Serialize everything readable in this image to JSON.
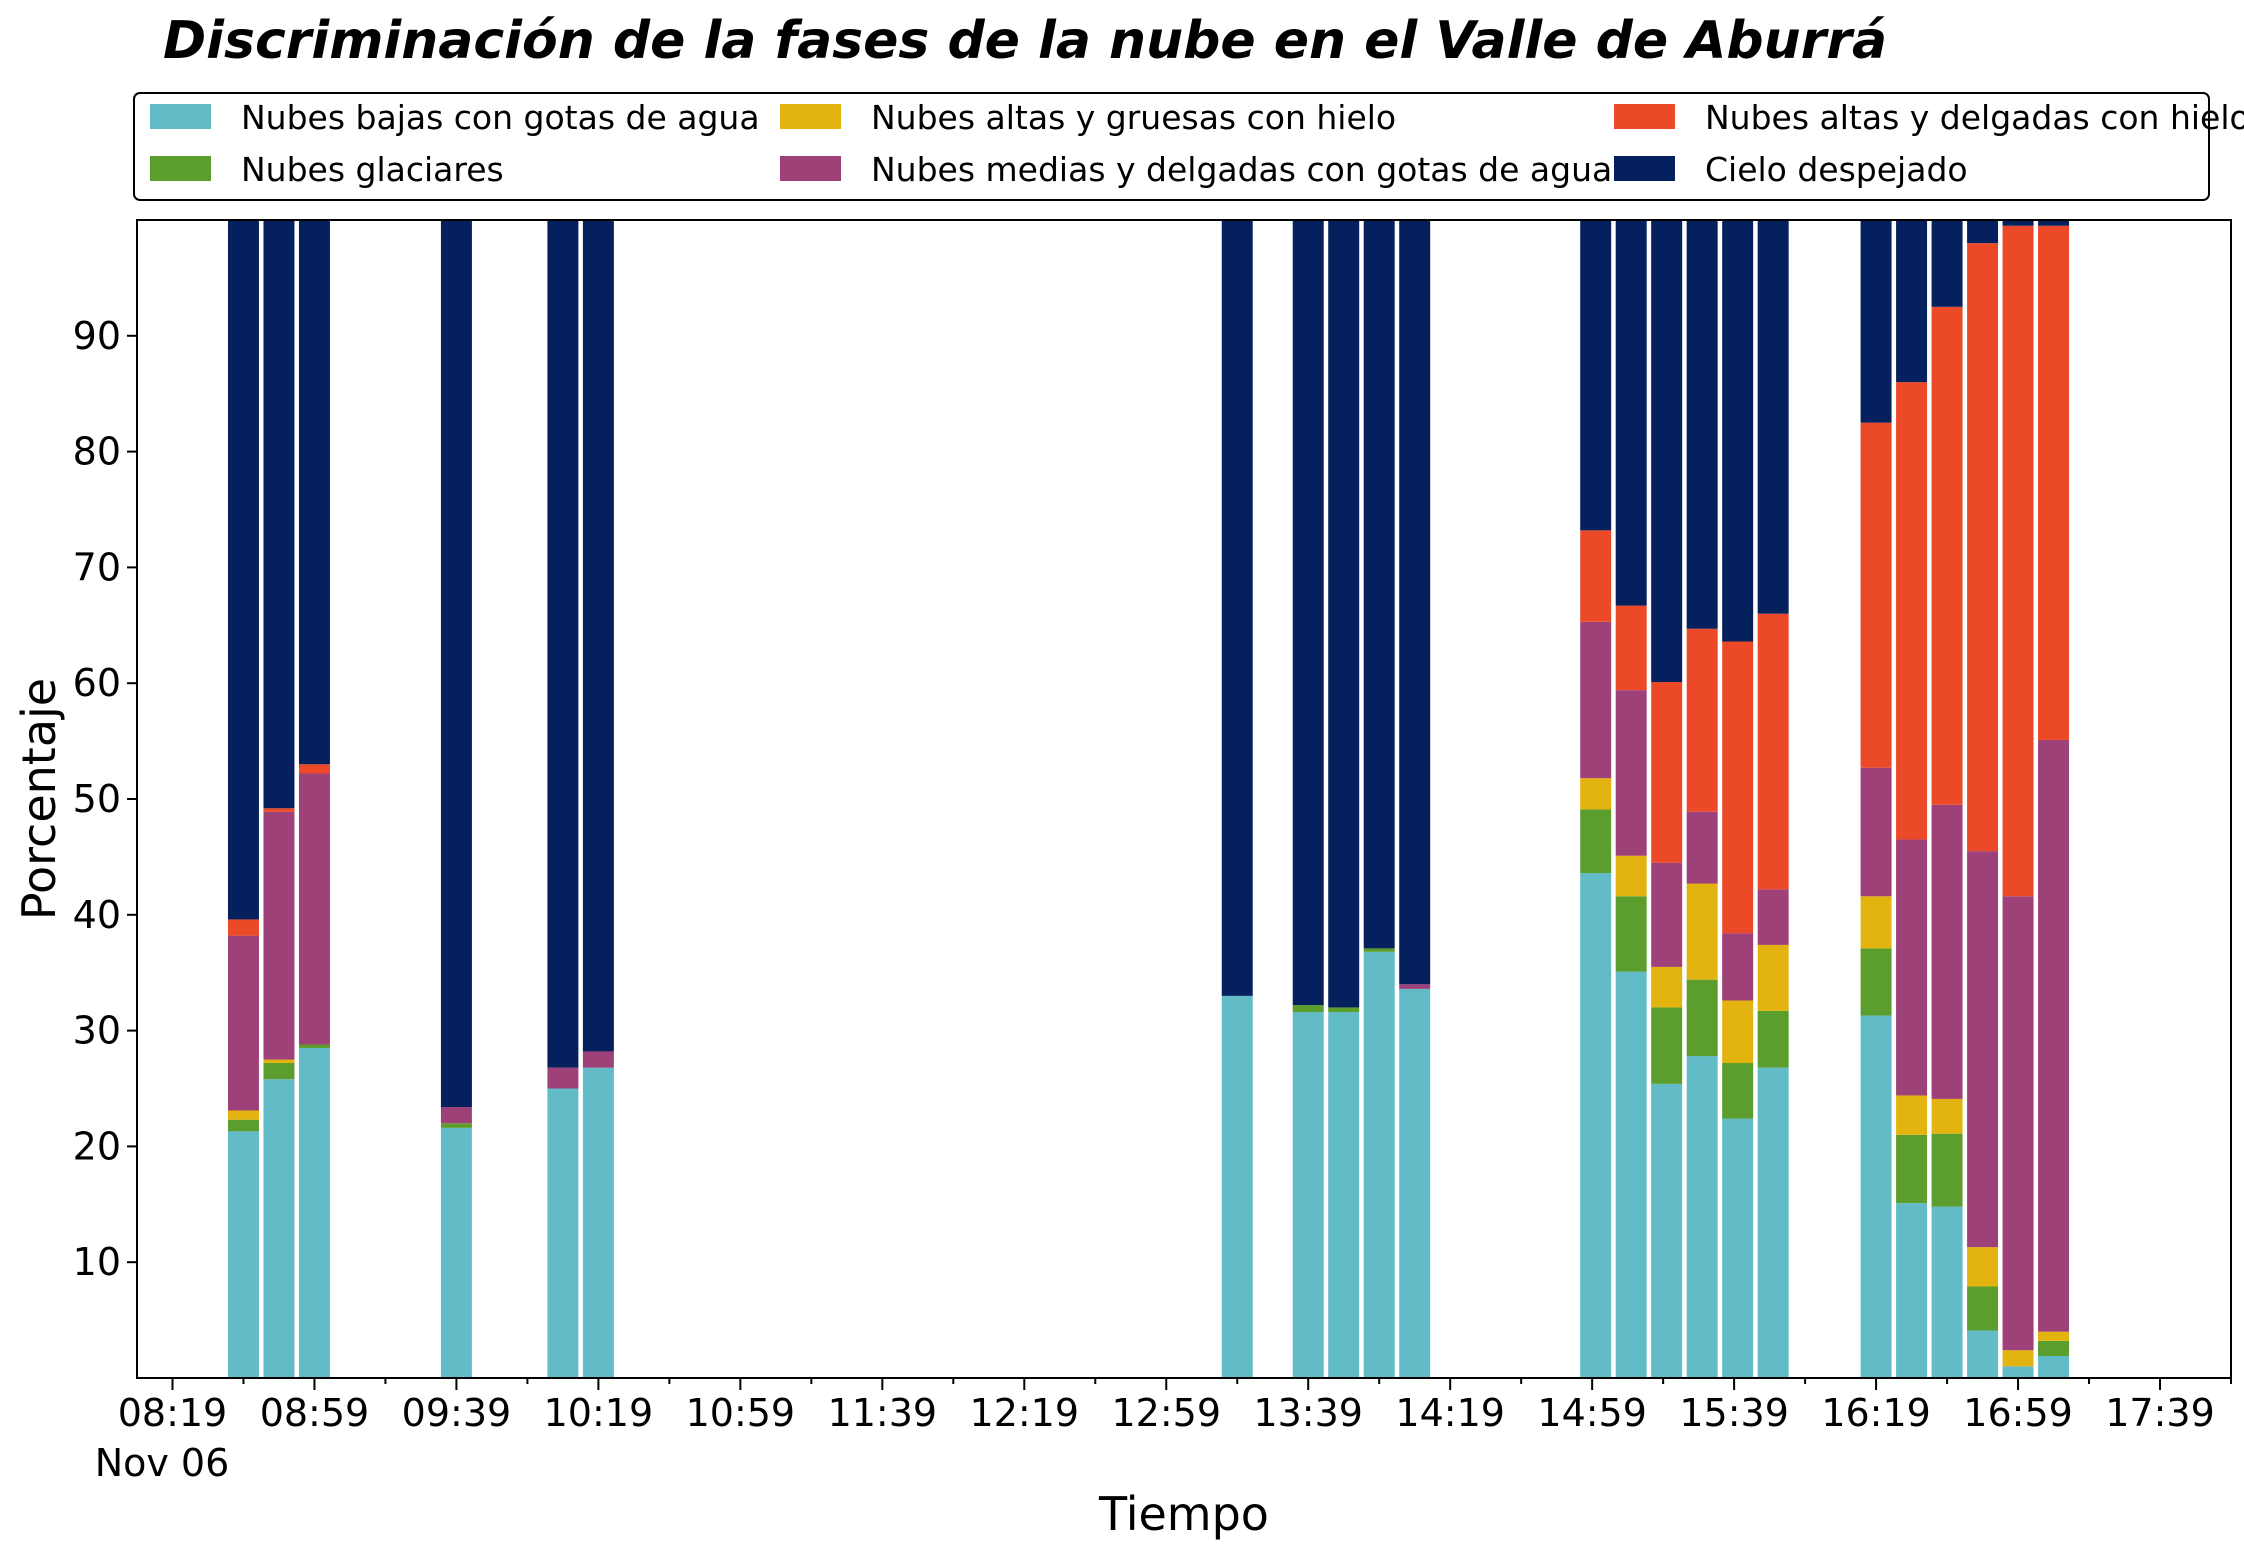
{
  "chart_data": {
    "type": "bar",
    "stacked": true,
    "title": "Discriminación de la fases de la nube en el Valle de Aburrá",
    "xlabel": "Tiempo",
    "ylabel": "Porcentaje",
    "ylim": [
      0,
      100
    ],
    "y_ticks": [
      10,
      20,
      30,
      40,
      50,
      60,
      70,
      80,
      90
    ],
    "x_ticks": [
      "08:19",
      "08:59",
      "09:39",
      "10:19",
      "10:59",
      "11:39",
      "12:19",
      "12:59",
      "13:39",
      "14:19",
      "14:59",
      "15:39",
      "16:19",
      "16:59",
      "17:39"
    ],
    "x_date_label": "Nov 06",
    "xlim": [
      "08:09",
      "17:59"
    ],
    "bar_width_minutes": 9,
    "legend_position": "top",
    "grid": false,
    "x": [
      "08:39",
      "08:49",
      "08:59",
      "09:39",
      "10:09",
      "10:19",
      "13:19",
      "13:39",
      "13:49",
      "13:59",
      "14:09",
      "15:00",
      "15:10",
      "15:20",
      "15:30",
      "15:40",
      "15:50",
      "16:19",
      "16:29",
      "16:39",
      "16:49",
      "16:59",
      "17:09"
    ],
    "series": [
      {
        "name": "Nubes bajas con gotas de agua",
        "color": "#62bcc8",
        "values": [
          21.3,
          25.8,
          28.5,
          21.6,
          25.0,
          26.8,
          33.0,
          31.6,
          31.6,
          36.8,
          33.6,
          43.6,
          35.1,
          25.4,
          27.8,
          22.4,
          26.8,
          31.3,
          15.1,
          14.8,
          4.1,
          1.0,
          1.9
        ]
      },
      {
        "name": "Nubes glaciares",
        "color": "#5c9e2e",
        "values": [
          1.0,
          1.4,
          0.3,
          0.4,
          0.0,
          0.0,
          0.0,
          0.6,
          0.4,
          0.3,
          0.0,
          5.5,
          6.5,
          6.6,
          6.6,
          4.8,
          4.9,
          5.8,
          5.9,
          6.3,
          3.8,
          0.0,
          1.3
        ]
      },
      {
        "name": "Nubes altas y gruesas con hielo",
        "color": "#e3b30f",
        "values": [
          0.8,
          0.3,
          0.0,
          0.0,
          0.0,
          0.0,
          0.0,
          0.0,
          0.0,
          0.0,
          0.0,
          2.7,
          3.5,
          3.5,
          8.3,
          5.4,
          5.7,
          4.5,
          3.4,
          3.0,
          3.4,
          1.4,
          0.8
        ]
      },
      {
        "name": "Nubes medias y delgadas con gotas de agua",
        "color": "#9e4178",
        "values": [
          15.1,
          21.4,
          23.4,
          1.4,
          1.8,
          1.4,
          0.0,
          0.0,
          0.0,
          0.0,
          0.4,
          13.5,
          14.3,
          9.0,
          6.2,
          5.8,
          4.8,
          11.1,
          22.1,
          25.4,
          34.2,
          39.2,
          51.1
        ]
      },
      {
        "name": "Nubes altas y delgadas con hielo",
        "color": "#ec4928",
        "values": [
          1.4,
          0.3,
          0.8,
          0.0,
          0.0,
          0.0,
          0.0,
          0.0,
          0.0,
          0.0,
          0.0,
          7.9,
          7.3,
          15.6,
          15.8,
          25.2,
          23.8,
          29.8,
          39.5,
          43.0,
          52.5,
          57.9,
          44.4
        ]
      },
      {
        "name": "Cielo despejado",
        "color": "#04205d",
        "values": [
          60.4,
          50.8,
          47.0,
          76.6,
          73.2,
          71.8,
          67.0,
          67.8,
          68.0,
          62.9,
          66.0,
          26.8,
          33.3,
          39.9,
          35.3,
          36.4,
          34.0,
          17.5,
          14.0,
          7.5,
          2.0,
          0.5,
          0.5
        ]
      }
    ]
  }
}
